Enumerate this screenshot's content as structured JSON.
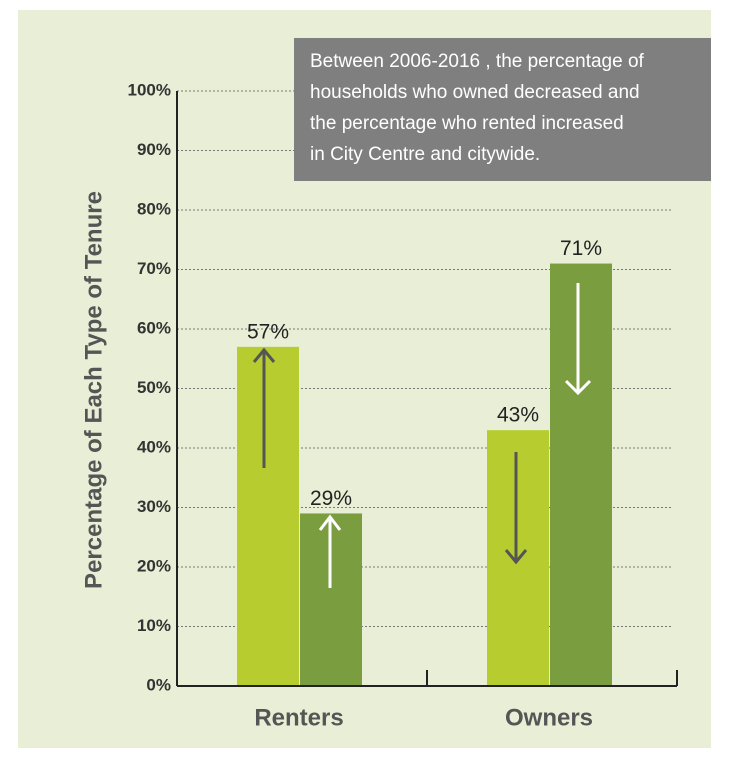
{
  "chart_data": {
    "type": "bar",
    "y_label": "Percentage of Each Type of Tenure",
    "annotation": [
      "Between 2006-2016 , the percentage of",
      "households who owned decreased and",
      "the percentage who rented increased",
      "in City Centre and citywide."
    ],
    "categories": [
      "Renters",
      "Owners"
    ],
    "series": [
      {
        "color": "#b7cd2f",
        "values": [
          57,
          43
        ],
        "value_labels": [
          "57%",
          "43%"
        ]
      },
      {
        "color": "#7a9d3f",
        "values": [
          29,
          71
        ],
        "value_labels": [
          "29%",
          "71%"
        ]
      }
    ],
    "ylim": [
      0,
      100
    ],
    "yticks": [
      {
        "value": 0,
        "label": "0%"
      },
      {
        "value": 10,
        "label": "10%"
      },
      {
        "value": 20,
        "label": "20%"
      },
      {
        "value": 30,
        "label": "30%"
      },
      {
        "value": 40,
        "label": "40%"
      },
      {
        "value": 50,
        "label": "50%"
      },
      {
        "value": 60,
        "label": "60%"
      },
      {
        "value": 70,
        "label": "70%"
      },
      {
        "value": 80,
        "label": "80%"
      },
      {
        "value": 90,
        "label": "90%"
      },
      {
        "value": 100,
        "label": "100%"
      }
    ],
    "grid": true
  }
}
